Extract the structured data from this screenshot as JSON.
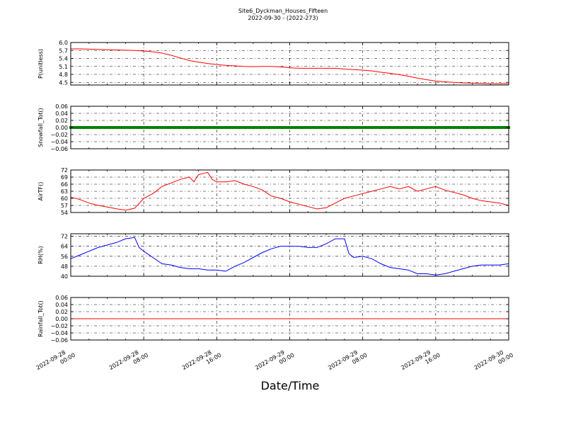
{
  "figure": {
    "title": "Site6_Dyckman_Houses_Fifteen",
    "subtitle": "2022-09-30 - (2022-273)",
    "xlabel": "Date/Time",
    "x_ticks": [
      "2022-09-28\n00:00",
      "2022-09-28\n08:00",
      "2022-09-28\n16:00",
      "2022-09-29\n00:00",
      "2022-09-29\n08:00",
      "2022-09-29\n16:00",
      "2022-09-30\n00:00"
    ]
  },
  "chart_data": [
    {
      "type": "line",
      "ylabel": "P(unitless)",
      "ylim": [
        4.4,
        6.0
      ],
      "yticks": [
        4.5,
        4.8,
        5.1,
        5.4,
        5.7,
        6.0
      ],
      "xlim_hours": [
        0,
        48
      ],
      "grid": true,
      "series": [
        {
          "color": "#ff0000",
          "x": [
            0,
            1,
            2,
            3,
            4,
            5,
            6,
            7,
            8,
            9,
            10,
            11,
            12,
            13,
            14,
            15,
            16,
            17,
            18,
            19,
            20,
            21,
            22,
            23,
            24,
            25,
            26,
            27,
            28,
            29,
            30,
            31,
            32,
            33,
            34,
            35,
            36,
            37,
            38,
            39,
            40,
            41,
            42,
            43,
            44,
            45,
            46,
            47,
            48
          ],
          "y": [
            5.76,
            5.76,
            5.75,
            5.74,
            5.73,
            5.72,
            5.71,
            5.7,
            5.68,
            5.65,
            5.6,
            5.52,
            5.42,
            5.32,
            5.26,
            5.21,
            5.17,
            5.14,
            5.12,
            5.1,
            5.09,
            5.1,
            5.1,
            5.08,
            5.05,
            5.03,
            5.03,
            5.03,
            5.03,
            5.03,
            5.0,
            4.98,
            4.96,
            4.93,
            4.88,
            4.84,
            4.79,
            4.73,
            4.66,
            4.6,
            4.55,
            4.52,
            4.5,
            4.48,
            4.47,
            4.46,
            4.45,
            4.45,
            4.45
          ]
        }
      ]
    },
    {
      "type": "scatter",
      "ylabel": "Snowfall_Tot()",
      "ylim": [
        -0.06,
        0.06
      ],
      "yticks": [
        -0.06,
        -0.04,
        -0.02,
        0.0,
        0.02,
        0.04,
        0.06
      ],
      "ytick_labels": [
        "−0.06",
        "−0.04",
        "−0.02",
        "0.00",
        "0.02",
        "0.04",
        "0.06"
      ],
      "xlim_hours": [
        0,
        48
      ],
      "grid": true,
      "series": [
        {
          "color": "#008000",
          "x_range": [
            0,
            48
          ],
          "value": 0.0
        }
      ]
    },
    {
      "type": "line",
      "ylabel": "AirTF()",
      "ylim": [
        54,
        72
      ],
      "yticks": [
        54,
        57,
        60,
        63,
        66,
        69,
        72
      ],
      "xlim_hours": [
        0,
        48
      ],
      "grid": true,
      "series": [
        {
          "color": "#ff0000",
          "x": [
            0,
            1,
            2,
            3,
            4,
            5,
            6,
            7,
            8,
            9,
            10,
            11,
            12,
            13,
            13.5,
            14,
            15,
            15.5,
            16,
            17,
            18,
            19,
            20,
            21,
            22,
            23,
            24,
            25,
            26,
            27,
            28,
            29,
            30,
            31,
            32,
            33,
            34,
            35,
            36,
            37,
            38,
            39,
            40,
            41,
            42,
            43,
            44,
            45,
            46,
            47,
            48
          ],
          "y": [
            60.5,
            59.5,
            58,
            57,
            56.3,
            55.6,
            55,
            55.8,
            60,
            62,
            65,
            66.5,
            68,
            69,
            67,
            70,
            71,
            68,
            67,
            67,
            67.5,
            66,
            65,
            63.5,
            61,
            60,
            58.5,
            57.5,
            56.5,
            55.5,
            56,
            58,
            60,
            61,
            62,
            63,
            64,
            65,
            64,
            65,
            63,
            64,
            65,
            63.5,
            62.5,
            61.5,
            60,
            59,
            58.5,
            58,
            57
          ]
        }
      ]
    },
    {
      "type": "line",
      "ylabel": "RH(%)",
      "ylim": [
        40,
        74
      ],
      "yticks": [
        40,
        48,
        56,
        64,
        72
      ],
      "xlim_hours": [
        0,
        48
      ],
      "grid": true,
      "series": [
        {
          "color": "#0000ff",
          "x": [
            0,
            1,
            2,
            3,
            4,
            5,
            6,
            7,
            7.5,
            8,
            9,
            10,
            11,
            12,
            13,
            14,
            15,
            16,
            17,
            18,
            19,
            20,
            21,
            22,
            23,
            24,
            25,
            26,
            27,
            28,
            29,
            30,
            30.5,
            31,
            32,
            33,
            34,
            35,
            36,
            37,
            38,
            39,
            40,
            41,
            42,
            43,
            44,
            45,
            46,
            47,
            48
          ],
          "y": [
            54,
            57,
            60,
            63,
            65,
            67,
            70,
            71,
            63,
            60,
            55,
            50,
            49,
            47,
            46,
            46,
            45,
            45,
            44,
            48,
            51,
            55,
            59,
            62,
            64,
            64,
            64,
            63,
            63,
            66,
            70,
            70,
            58,
            55,
            56,
            54,
            50,
            47,
            46,
            45,
            42,
            42,
            41,
            42,
            44,
            46,
            48,
            49,
            49,
            49,
            50
          ]
        }
      ]
    },
    {
      "type": "line",
      "ylabel": "Rainfall_Tot()",
      "ylim": [
        -0.06,
        0.06
      ],
      "yticks": [
        -0.06,
        -0.04,
        -0.02,
        0.0,
        0.02,
        0.04,
        0.06
      ],
      "ytick_labels": [
        "−0.06",
        "−0.04",
        "−0.02",
        "0.00",
        "0.02",
        "0.04",
        "0.06"
      ],
      "xlim_hours": [
        0,
        48
      ],
      "grid": true,
      "series": [
        {
          "color": "#ff0000",
          "x": [
            0,
            48
          ],
          "y": [
            0.0,
            0.0
          ]
        }
      ]
    }
  ]
}
